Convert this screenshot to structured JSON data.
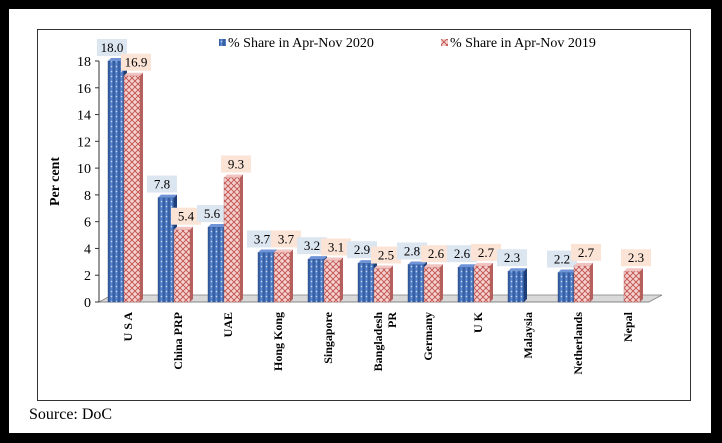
{
  "chart_data": {
    "type": "bar",
    "ylabel": "Per cent",
    "xlabel": "",
    "ylim": [
      0,
      18
    ],
    "yticks": [
      0,
      2,
      4,
      6,
      8,
      10,
      12,
      14,
      16,
      18
    ],
    "categories": [
      "U S A",
      "China PRP",
      "UAE",
      "Hong Kong",
      "Singapore",
      "Bangladesh PR",
      "Germany",
      "U K",
      "Malaysia",
      "Netherlands",
      "Nepal"
    ],
    "series": [
      {
        "name": "% Share in Apr-Nov 2020",
        "values": [
          18.0,
          7.8,
          5.6,
          3.7,
          3.2,
          2.9,
          2.8,
          2.6,
          2.3,
          2.2,
          null
        ],
        "labels": [
          "18.0",
          "7.8",
          "5.6",
          "3.7",
          "3.2",
          "2.9",
          "2.8",
          "2.6",
          "2.3",
          "2.2",
          ""
        ],
        "color": "#4472C4",
        "label_bg": "#DCE6F1"
      },
      {
        "name": "% Share in Apr-Nov 2019",
        "values": [
          16.9,
          5.4,
          9.3,
          3.7,
          3.1,
          2.5,
          2.6,
          2.7,
          null,
          2.7,
          2.3
        ],
        "labels": [
          "16.9",
          "5.4",
          "9.3",
          "3.7",
          "3.1",
          "2.5",
          "2.6",
          "2.7",
          "",
          "2.7",
          "2.3"
        ],
        "color": "#E8A7A3",
        "label_bg": "#FBE4D5"
      }
    ],
    "legend_position": "top",
    "grid": false
  },
  "source": "Source: DoC"
}
